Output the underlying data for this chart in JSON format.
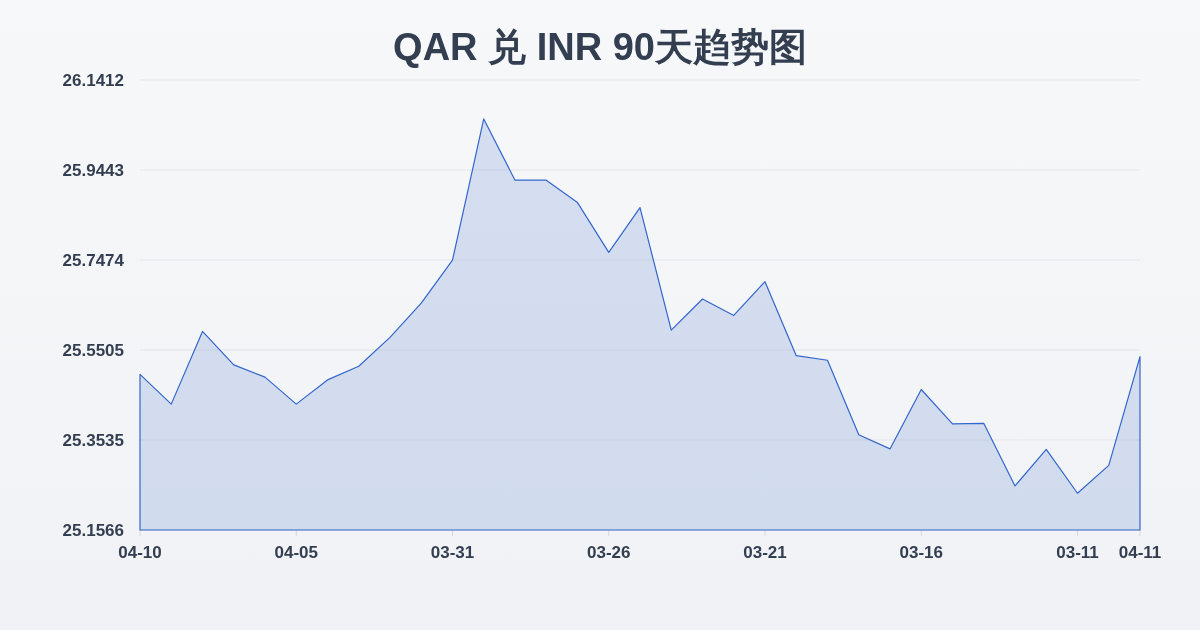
{
  "chart_data": {
    "type": "area",
    "title": "QAR 兑 INR 90天趋势图",
    "categories": [
      "04-10",
      null,
      null,
      null,
      null,
      "04-05",
      null,
      null,
      null,
      null,
      "03-31",
      null,
      null,
      null,
      null,
      "03-26",
      null,
      null,
      null,
      null,
      "03-21",
      null,
      null,
      null,
      null,
      "03-16",
      null,
      null,
      null,
      null,
      "03-11",
      null,
      "04-11"
    ],
    "values": [
      25.497,
      25.432,
      25.591,
      25.518,
      25.491,
      25.432,
      25.485,
      25.515,
      25.578,
      25.653,
      25.747,
      26.056,
      25.922,
      25.922,
      25.873,
      25.764,
      25.862,
      25.594,
      25.662,
      25.626,
      25.7,
      25.538,
      25.528,
      25.365,
      25.334,
      25.464,
      25.389,
      25.39,
      25.253,
      25.333,
      25.237,
      25.298,
      25.536
    ],
    "color": "#3366cc",
    "ylim": [
      25.1566,
      26.1412
    ],
    "yticks": [
      25.1566,
      25.3535,
      25.5505,
      25.7474,
      25.9443,
      26.1412
    ],
    "grid": "y"
  }
}
